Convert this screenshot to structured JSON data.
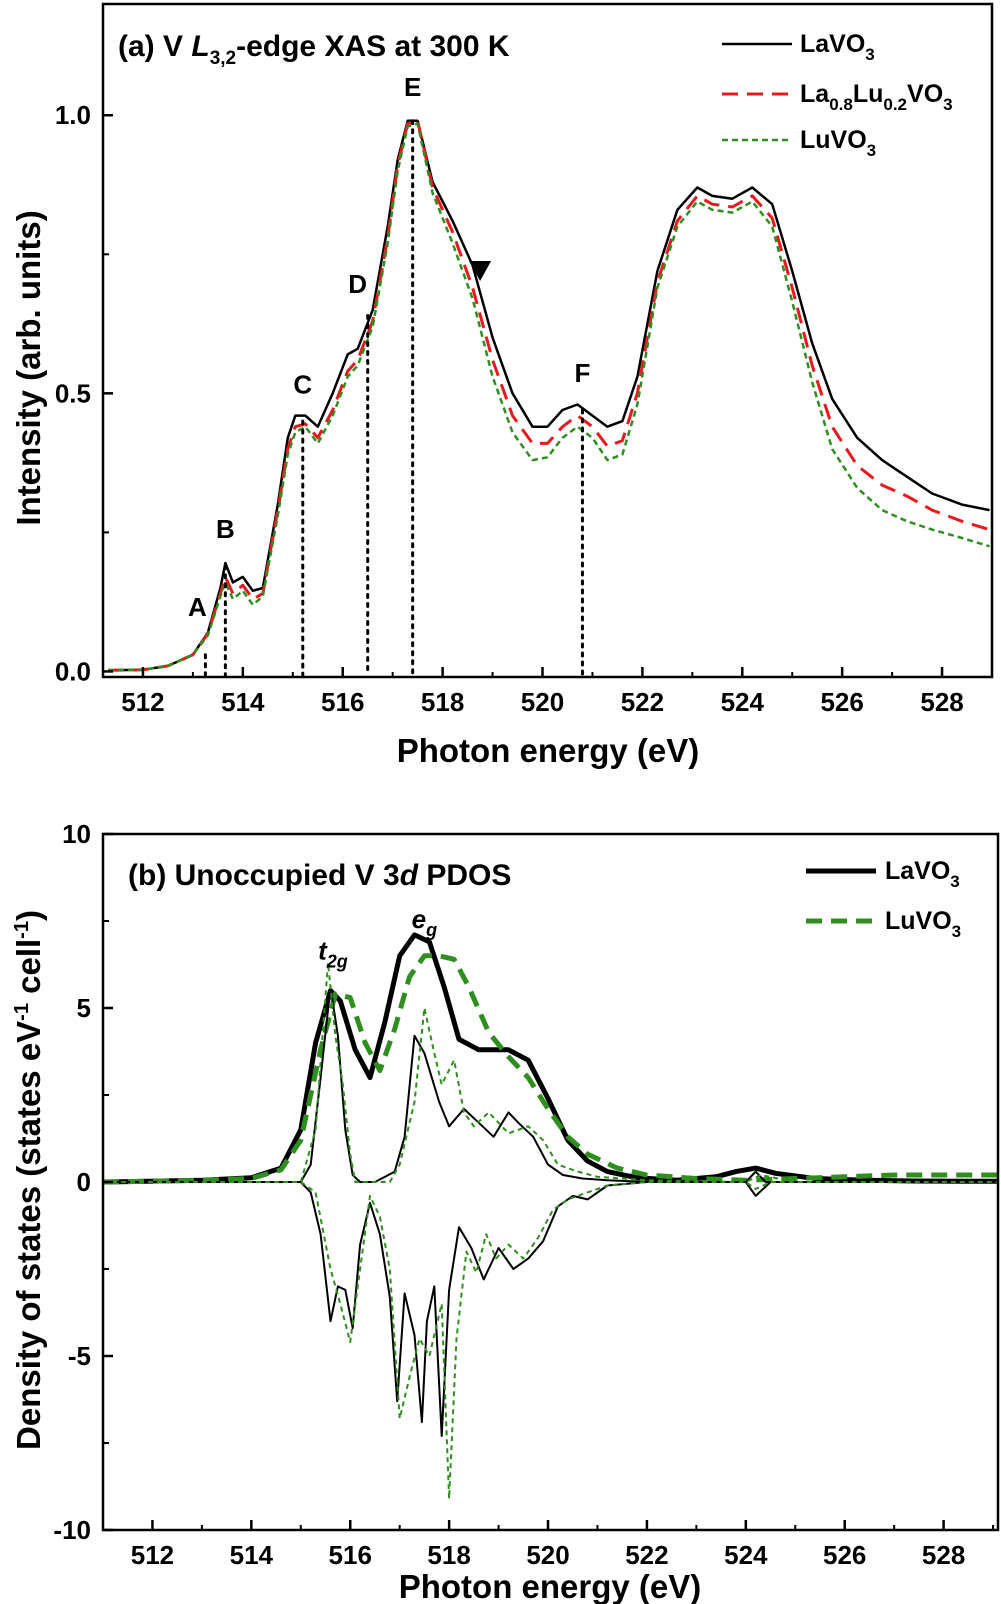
{
  "chart_data": [
    {
      "panel": "a",
      "type": "line",
      "title": {
        "prefix": "(a) V ",
        "element": "L",
        "sub": "3,2",
        "suffix": "-edge XAS at 300 K"
      },
      "xlabel": "Photon energy (eV)",
      "ylabel": "Intensity (arb. units)",
      "xlim": [
        511.2,
        529.0
      ],
      "ylim": [
        -0.01,
        1.2
      ],
      "xticks": [
        512,
        514,
        516,
        518,
        520,
        522,
        524,
        526,
        528
      ],
      "xtick_labels": [
        "512",
        "514",
        "516",
        "518",
        "520",
        "522",
        "524",
        "526",
        "528"
      ],
      "yticks": [
        0.0,
        0.5,
        1.0
      ],
      "ytick_labels": [
        "0.0",
        "0.5",
        "1.0"
      ],
      "series": [
        {
          "name": "LaVO3",
          "legend": {
            "base": "LaVO",
            "parts": [
              {
                "t": "3",
                "sub": true
              }
            ]
          },
          "color": "#000000",
          "style": "solid",
          "x": [
            511.3,
            512.0,
            512.5,
            513.0,
            513.3,
            513.55,
            513.65,
            513.8,
            514.0,
            514.2,
            514.4,
            514.7,
            514.9,
            515.05,
            515.25,
            515.5,
            515.8,
            516.1,
            516.3,
            516.6,
            516.9,
            517.1,
            517.3,
            517.5,
            517.8,
            518.2,
            518.6,
            519.0,
            519.4,
            519.8,
            520.1,
            520.4,
            520.7,
            521.0,
            521.3,
            521.6,
            521.9,
            522.3,
            522.7,
            523.1,
            523.4,
            523.8,
            524.2,
            524.6,
            525.0,
            525.4,
            525.8,
            526.3,
            526.8,
            527.3,
            527.8,
            528.4,
            528.95
          ],
          "y": [
            0.002,
            0.003,
            0.01,
            0.03,
            0.07,
            0.15,
            0.195,
            0.16,
            0.17,
            0.145,
            0.15,
            0.3,
            0.42,
            0.46,
            0.46,
            0.44,
            0.5,
            0.57,
            0.58,
            0.65,
            0.8,
            0.92,
            0.99,
            0.99,
            0.88,
            0.81,
            0.73,
            0.6,
            0.5,
            0.44,
            0.44,
            0.47,
            0.48,
            0.46,
            0.44,
            0.45,
            0.53,
            0.72,
            0.83,
            0.87,
            0.855,
            0.85,
            0.87,
            0.84,
            0.72,
            0.59,
            0.49,
            0.42,
            0.38,
            0.35,
            0.32,
            0.3,
            0.29
          ]
        },
        {
          "name": "La0.8Lu0.2VO3",
          "legend": {
            "base": "La",
            "parts": [
              {
                "t": "0.8",
                "sub": true
              },
              {
                "t": "Lu",
                "sub": false
              },
              {
                "t": "0.2",
                "sub": true
              },
              {
                "t": "VO",
                "sub": false
              },
              {
                "t": "3",
                "sub": true
              }
            ]
          },
          "color": "#e8191e",
          "style": "dashed",
          "x": [
            511.3,
            512.0,
            512.5,
            513.0,
            513.3,
            513.55,
            513.65,
            513.8,
            514.0,
            514.2,
            514.4,
            514.7,
            514.9,
            515.05,
            515.25,
            515.5,
            515.8,
            516.1,
            516.3,
            516.6,
            516.9,
            517.1,
            517.3,
            517.5,
            517.8,
            518.2,
            518.6,
            519.0,
            519.4,
            519.8,
            520.1,
            520.4,
            520.7,
            521.0,
            521.3,
            521.6,
            521.9,
            522.3,
            522.7,
            523.1,
            523.4,
            523.8,
            524.2,
            524.6,
            525.0,
            525.4,
            525.8,
            526.3,
            526.8,
            527.3,
            527.8,
            528.4,
            528.95
          ],
          "y": [
            0.002,
            0.003,
            0.01,
            0.03,
            0.068,
            0.14,
            0.17,
            0.14,
            0.155,
            0.13,
            0.14,
            0.29,
            0.4,
            0.44,
            0.445,
            0.42,
            0.47,
            0.54,
            0.56,
            0.63,
            0.78,
            0.91,
            0.985,
            0.99,
            0.87,
            0.79,
            0.69,
            0.56,
            0.46,
            0.41,
            0.41,
            0.44,
            0.46,
            0.44,
            0.405,
            0.415,
            0.5,
            0.7,
            0.81,
            0.855,
            0.84,
            0.835,
            0.855,
            0.815,
            0.69,
            0.55,
            0.44,
            0.37,
            0.335,
            0.315,
            0.29,
            0.27,
            0.255
          ]
        },
        {
          "name": "LuVO3",
          "legend": {
            "base": "LuVO",
            "parts": [
              {
                "t": "3",
                "sub": true
              }
            ]
          },
          "color": "#2f8f1e",
          "style": "dotted",
          "x": [
            511.3,
            512.0,
            512.5,
            513.0,
            513.3,
            513.55,
            513.65,
            513.8,
            514.0,
            514.2,
            514.4,
            514.7,
            514.9,
            515.05,
            515.25,
            515.5,
            515.8,
            516.1,
            516.3,
            516.6,
            516.9,
            517.1,
            517.3,
            517.5,
            517.8,
            518.2,
            518.6,
            519.0,
            519.4,
            519.8,
            520.1,
            520.4,
            520.7,
            521.0,
            521.3,
            521.6,
            521.9,
            522.3,
            522.7,
            523.1,
            523.4,
            523.8,
            524.2,
            524.6,
            525.0,
            525.4,
            525.8,
            526.3,
            526.8,
            527.3,
            527.8,
            528.4,
            528.95
          ],
          "y": [
            0.002,
            0.003,
            0.01,
            0.03,
            0.065,
            0.135,
            0.16,
            0.13,
            0.145,
            0.12,
            0.135,
            0.28,
            0.39,
            0.43,
            0.44,
            0.41,
            0.46,
            0.53,
            0.55,
            0.62,
            0.77,
            0.9,
            0.98,
            0.985,
            0.86,
            0.77,
            0.67,
            0.53,
            0.43,
            0.38,
            0.385,
            0.42,
            0.44,
            0.42,
            0.38,
            0.39,
            0.48,
            0.69,
            0.8,
            0.845,
            0.83,
            0.825,
            0.845,
            0.8,
            0.665,
            0.52,
            0.4,
            0.33,
            0.29,
            0.27,
            0.255,
            0.24,
            0.225
          ]
        }
      ],
      "annotations": [
        {
          "label": "A",
          "x": 513.25,
          "label_y": 0.1,
          "line_top": 0.03
        },
        {
          "label": "B",
          "x": 513.65,
          "label_y": 0.24,
          "line_top": 0.19
        },
        {
          "label": "C",
          "x": 515.2,
          "label_y": 0.5,
          "line_top": 0.45
        },
        {
          "label": "D",
          "x": 516.5,
          "label_y": 0.68,
          "line_top": 0.64
        },
        {
          "label": "E",
          "x": 517.4,
          "label_y": 1.035,
          "line_top": 0.99
        },
        {
          "label": "F",
          "x": 520.8,
          "label_y": 0.52,
          "line_top": 0.47
        }
      ],
      "marker": {
        "shape": "down-triangle",
        "x": 518.75,
        "y": 0.72
      }
    },
    {
      "panel": "b",
      "type": "line",
      "title": {
        "prefix": "(b) Unoccupied V 3",
        "element": "d",
        "suffix": " PDOS"
      },
      "xlabel": "Photon energy (eV)",
      "ylabel": {
        "base": "Density of states (states eV",
        "sup1": "-1",
        "mid": " cell",
        "sup2": "-1",
        "end": ")"
      },
      "xlim": [
        511.0,
        529.1
      ],
      "ylim": [
        -10.0,
        10.0
      ],
      "xticks": [
        512,
        514,
        516,
        518,
        520,
        522,
        524,
        526,
        528
      ],
      "xtick_labels": [
        "512",
        "514",
        "516",
        "518",
        "520",
        "522",
        "524",
        "526",
        "528"
      ],
      "yticks": [
        -10,
        -5,
        0,
        5,
        10
      ],
      "ytick_labels": [
        "-10",
        "-5",
        "0",
        "5",
        "10"
      ],
      "peak_labels": [
        {
          "base": "t",
          "sub": "2g",
          "x": 515.65,
          "y": 6.4
        },
        {
          "base": "e",
          "sub": "g",
          "x": 517.5,
          "y": 7.3
        }
      ],
      "series": [
        {
          "name": "LaVO3",
          "legend": {
            "base": "LaVO",
            "parts": [
              {
                "t": "3",
                "sub": true
              }
            ]
          },
          "color": "#000000",
          "style": "solid-thick",
          "in_legend": true,
          "x": [
            511.0,
            513.0,
            514.0,
            514.6,
            515.0,
            515.3,
            515.6,
            515.8,
            516.1,
            516.4,
            516.7,
            517.0,
            517.3,
            517.6,
            517.9,
            518.2,
            518.6,
            519.2,
            519.6,
            520.0,
            520.4,
            520.8,
            521.2,
            521.8,
            522.6,
            523.4,
            523.8,
            524.2,
            524.6,
            525.4,
            526.4,
            527.4,
            528.4,
            529.1
          ],
          "y": [
            0.0,
            0.05,
            0.12,
            0.4,
            1.5,
            4.0,
            5.5,
            5.2,
            3.8,
            3.0,
            4.6,
            6.5,
            7.1,
            6.9,
            5.6,
            4.1,
            3.8,
            3.8,
            3.5,
            2.4,
            1.2,
            0.6,
            0.3,
            0.12,
            0.05,
            0.15,
            0.3,
            0.4,
            0.25,
            0.1,
            0.05,
            0.03,
            0.02,
            0.02
          ]
        },
        {
          "name": "LuVO3",
          "legend": {
            "base": "LuVO",
            "parts": [
              {
                "t": "3",
                "sub": true
              }
            ]
          },
          "color": "#2f8f1e",
          "style": "dashed-thick",
          "in_legend": true,
          "x": [
            511.0,
            513.0,
            514.0,
            514.6,
            515.0,
            515.4,
            515.7,
            516.0,
            516.3,
            516.6,
            516.9,
            517.2,
            517.5,
            517.8,
            518.1,
            518.4,
            518.8,
            519.2,
            519.6,
            520.0,
            520.4,
            520.8,
            521.4,
            522.0,
            523.0,
            524.0,
            525.0,
            526.0,
            527.0,
            528.0,
            529.1
          ],
          "y": [
            0.0,
            0.05,
            0.1,
            0.35,
            1.2,
            3.8,
            5.4,
            5.3,
            4.0,
            3.2,
            4.4,
            5.9,
            6.5,
            6.5,
            6.4,
            5.6,
            4.3,
            3.6,
            3.0,
            2.1,
            1.3,
            0.8,
            0.4,
            0.2,
            0.1,
            0.05,
            0.1,
            0.15,
            0.2,
            0.2,
            0.2
          ]
        },
        {
          "name": "LaVO3 spin-up",
          "color": "#000000",
          "style": "solid-thin",
          "in_legend": false,
          "x": [
            511.0,
            515.0,
            515.2,
            515.4,
            515.6,
            515.75,
            515.9,
            516.05,
            516.2,
            516.5,
            516.9,
            517.1,
            517.3,
            517.5,
            517.8,
            518.0,
            518.3,
            518.6,
            518.9,
            519.2,
            519.4,
            519.7,
            520.0,
            520.3,
            520.7,
            521.2,
            522.0,
            524.0,
            524.2,
            524.4,
            525.0,
            529.1
          ],
          "y": [
            0.0,
            0.0,
            0.5,
            3.0,
            5.6,
            4.2,
            1.5,
            0.2,
            0.0,
            0.0,
            0.3,
            1.3,
            4.2,
            3.7,
            2.3,
            1.6,
            2.1,
            1.7,
            1.3,
            2.0,
            1.7,
            1.3,
            0.5,
            0.2,
            0.1,
            0.05,
            0.0,
            0.0,
            0.3,
            0.0,
            0.0,
            0.0
          ]
        },
        {
          "name": "LuVO3 spin-up",
          "color": "#2f8f1e",
          "style": "dotted-thin",
          "in_legend": false,
          "x": [
            511.0,
            515.0,
            515.3,
            515.55,
            515.7,
            515.85,
            516.0,
            516.1,
            516.4,
            516.8,
            517.0,
            517.3,
            517.5,
            517.7,
            517.85,
            518.1,
            518.3,
            518.5,
            518.8,
            519.2,
            519.6,
            519.9,
            520.2,
            520.6,
            521.0,
            522.0,
            524.0,
            524.3,
            525.0,
            529.1
          ],
          "y": [
            0.0,
            0.0,
            1.5,
            6.3,
            4.2,
            2.8,
            0.8,
            0.0,
            0.0,
            0.0,
            0.5,
            2.3,
            5.0,
            3.7,
            2.8,
            3.5,
            2.0,
            1.6,
            2.0,
            1.4,
            1.6,
            1.2,
            0.5,
            0.3,
            0.15,
            0.05,
            0.0,
            0.2,
            0.0,
            0.0
          ]
        },
        {
          "name": "LaVO3 spin-down",
          "color": "#000000",
          "style": "solid-thin",
          "in_legend": false,
          "x": [
            511.0,
            515.0,
            515.2,
            515.4,
            515.6,
            515.75,
            515.9,
            516.05,
            516.2,
            516.4,
            516.6,
            516.8,
            516.95,
            517.1,
            517.3,
            517.45,
            517.55,
            517.7,
            517.85,
            518.0,
            518.2,
            518.45,
            518.7,
            519.0,
            519.3,
            519.6,
            519.9,
            520.2,
            520.5,
            520.8,
            521.2,
            522.0,
            524.0,
            524.2,
            524.5,
            525.0,
            529.1
          ],
          "y": [
            0.0,
            0.0,
            -0.3,
            -1.5,
            -4.0,
            -3.0,
            -3.1,
            -4.2,
            -1.8,
            -0.6,
            -1.5,
            -3.3,
            -6.3,
            -3.2,
            -4.4,
            -6.9,
            -4.0,
            -3.0,
            -7.3,
            -3.1,
            -1.3,
            -1.9,
            -2.8,
            -1.9,
            -2.5,
            -2.2,
            -1.7,
            -0.7,
            -0.4,
            -0.5,
            -0.1,
            0.0,
            0.0,
            -0.4,
            0.0,
            0.0,
            0.0
          ]
        },
        {
          "name": "LuVO3 spin-down",
          "color": "#2f8f1e",
          "style": "dotted-thin",
          "in_legend": false,
          "x": [
            511.0,
            515.0,
            515.3,
            515.6,
            515.8,
            516.0,
            516.2,
            516.4,
            516.6,
            516.8,
            517.0,
            517.2,
            517.4,
            517.6,
            517.85,
            518.0,
            518.15,
            518.35,
            518.55,
            518.75,
            518.95,
            519.2,
            519.5,
            519.8,
            520.1,
            520.4,
            520.8,
            521.2,
            522.0,
            524.0,
            524.2,
            524.5,
            525.0,
            529.1
          ],
          "y": [
            0.0,
            0.0,
            -0.3,
            -2.5,
            -3.5,
            -4.6,
            -2.5,
            -0.4,
            -1.0,
            -2.5,
            -6.8,
            -5.6,
            -4.5,
            -5.0,
            -3.5,
            -9.1,
            -4.5,
            -2.0,
            -2.6,
            -1.5,
            -2.2,
            -1.8,
            -2.2,
            -1.6,
            -0.8,
            -0.5,
            -0.3,
            -0.1,
            0.0,
            0.0,
            -0.2,
            0.0,
            0.0,
            0.0
          ]
        }
      ]
    }
  ]
}
